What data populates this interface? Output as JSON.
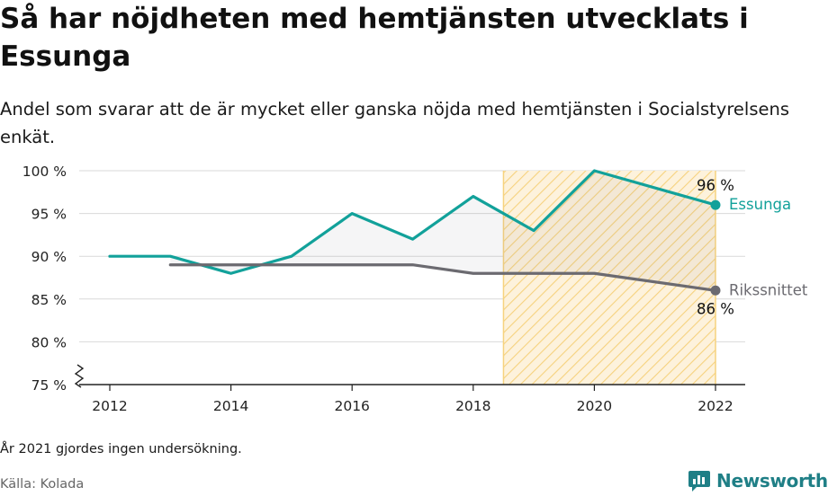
{
  "title": "Så har nöjdheten med hemtjänsten utvecklats i Essunga",
  "subtitle": "Andel som svarar att de är mycket eller ganska nöjda med hemtjänsten i Socialstyrelsens enkät.",
  "note": "År 2021 gjordes ingen undersökning.",
  "source": "Källa: Kolada",
  "brand": "Newsworthy",
  "colors": {
    "essunga": "#12a19a",
    "riket": "#6b6a70",
    "highlight_fill": "#fdf2dc",
    "highlight_hatch": "#f6d27e",
    "grid": "#d9d9d9",
    "axis": "#222222",
    "brand": "#1f7f86"
  },
  "chart_data": {
    "type": "line",
    "x": [
      2012,
      2013,
      2014,
      2015,
      2016,
      2017,
      2018,
      2019,
      2020,
      2022
    ],
    "series": [
      {
        "name": "Essunga",
        "x": [
          2012,
          2013,
          2014,
          2015,
          2016,
          2017,
          2018,
          2019,
          2020,
          2022
        ],
        "values": [
          90,
          90,
          88,
          90,
          95,
          92,
          97,
          93,
          100,
          96
        ],
        "end_label": "96 %"
      },
      {
        "name": "Rikssnittet",
        "x": [
          2013,
          2014,
          2015,
          2016,
          2017,
          2018,
          2019,
          2020,
          2022
        ],
        "values": [
          89,
          89,
          89,
          89,
          89,
          88,
          88,
          88,
          86
        ],
        "end_label": "86 %"
      }
    ],
    "xticks": [
      "2012",
      "2014",
      "2016",
      "2018",
      "2020",
      "2022"
    ],
    "yticks": [
      "75 %",
      "80 %",
      "85 %",
      "90 %",
      "95 %",
      "100 %"
    ],
    "ylim": [
      75,
      100
    ],
    "xlim": [
      2011.5,
      2022.5
    ],
    "highlight_range": [
      2018.5,
      2022
    ],
    "axis_break": true,
    "grid": true,
    "xlabel": "",
    "ylabel": ""
  }
}
